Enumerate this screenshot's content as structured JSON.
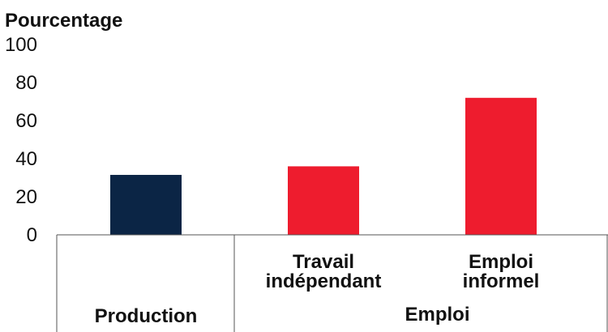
{
  "chart_data": {
    "type": "bar",
    "ylabel": "Pourcentage",
    "ylim": [
      0,
      100
    ],
    "yticks": [
      0,
      20,
      40,
      60,
      80,
      100
    ],
    "grid": false,
    "categories": [
      {
        "label": [
          "Production"
        ],
        "value": 31.5,
        "color": "#0b2545"
      },
      {
        "label": [
          "Travail",
          "indépendant"
        ],
        "value": 36,
        "color": "#ee1c2e"
      },
      {
        "label": [
          "Emploi",
          "informel"
        ],
        "value": 72,
        "color": "#ee1c2e"
      }
    ],
    "groups": [
      {
        "label": "Production",
        "span": [
          0,
          0
        ],
        "show_label": false
      },
      {
        "label": "Emploi",
        "span": [
          1,
          2
        ],
        "show_label": true
      }
    ]
  }
}
